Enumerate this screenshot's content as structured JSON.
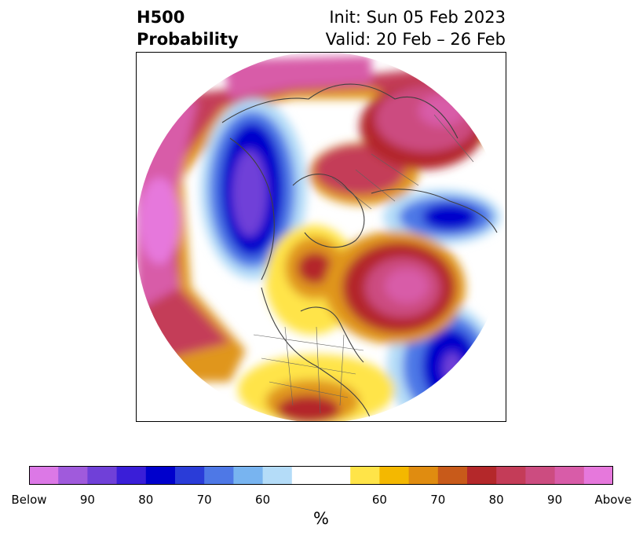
{
  "title": {
    "left_line1": "H500",
    "left_line2": "Probability",
    "right_line1": "Init: Sun 05 Feb 2023",
    "right_line2": "Valid: 20 Feb – 26 Feb"
  },
  "colorbar": {
    "unit": "%",
    "colors": [
      "#dc78e6",
      "#a05adc",
      "#7040d8",
      "#3a1ed8",
      "#0000cc",
      "#2a3cd8",
      "#4e78e6",
      "#78b4f0",
      "#b4dcf8",
      "#ffffff",
      "#ffffff",
      "#ffe448",
      "#f4b800",
      "#e08c10",
      "#c85a1a",
      "#b4282a",
      "#c43c58",
      "#cc4c80",
      "#d85ca8",
      "#e678dc"
    ],
    "ticks": [
      "Below",
      "90",
      "80",
      "70",
      "60",
      "60",
      "70",
      "80",
      "90",
      "Above"
    ]
  }
}
